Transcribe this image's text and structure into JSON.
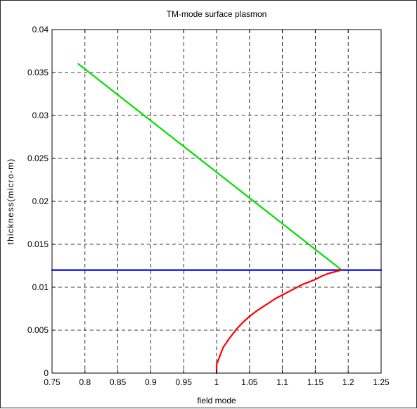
{
  "chart_data": {
    "type": "line",
    "title": "TM-mode surface plasmon",
    "xlabel": "field mode",
    "ylabel": "thickness(micro-m)",
    "xlim": [
      0.75,
      1.25
    ],
    "ylim": [
      0,
      0.04
    ],
    "xticks": [
      "0.75",
      "0.8",
      "0.85",
      "0.9",
      "0.95",
      "1",
      "1.05",
      "1.1",
      "1.15",
      "1.2",
      "1.25"
    ],
    "yticks": [
      "0",
      "0.005",
      "0.01",
      "0.015",
      "0.02",
      "0.025",
      "0.03",
      "0.035",
      "0.04"
    ],
    "grid": true,
    "grid_style": "dashed",
    "series": [
      {
        "color": "#00e000",
        "x": [
          0.79,
          1.19
        ],
        "y": [
          0.036,
          0.012
        ]
      },
      {
        "color": "#0000ff",
        "x": [
          0.75,
          1.25
        ],
        "y": [
          0.012,
          0.012
        ]
      },
      {
        "color": "#ff0000",
        "x": [
          1.0,
          1.0,
          1.005,
          1.01,
          1.02,
          1.03,
          1.04,
          1.05,
          1.06,
          1.07,
          1.08,
          1.09,
          1.1,
          1.11,
          1.12,
          1.13,
          1.14,
          1.15,
          1.16,
          1.17,
          1.18,
          1.19
        ],
        "y": [
          0.0,
          0.001,
          0.002,
          0.003,
          0.0041,
          0.0051,
          0.0059,
          0.0066,
          0.0072,
          0.0077,
          0.0082,
          0.0087,
          0.0091,
          0.0095,
          0.0099,
          0.0103,
          0.0106,
          0.0109,
          0.0113,
          0.0116,
          0.0118,
          0.012
        ]
      }
    ]
  }
}
